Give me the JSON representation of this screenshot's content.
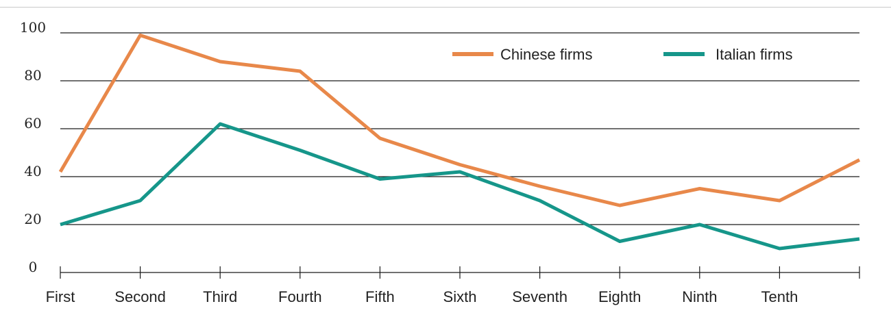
{
  "chart_data": {
    "type": "line",
    "title": "",
    "xlabel": "",
    "ylabel": "",
    "categories": [
      "First",
      "Second",
      "Third",
      "Fourth",
      "Fifth",
      "Sixth",
      "Seventh",
      "Eighth",
      "Ninth",
      "Tenth",
      ""
    ],
    "ylim": [
      0,
      100
    ],
    "yticks": [
      "0",
      "20",
      "40",
      "60",
      "80",
      "100"
    ],
    "grid": true,
    "legend_position": "top-right",
    "series": [
      {
        "name": "Chinese firms",
        "color": "#e8884a",
        "values": [
          42,
          99,
          88,
          84,
          56,
          45,
          36,
          28,
          35,
          30,
          47
        ]
      },
      {
        "name": "Italian firms",
        "color": "#16968a",
        "values": [
          20,
          30,
          62,
          51,
          39,
          42,
          30,
          13,
          20,
          10,
          14
        ]
      }
    ]
  }
}
